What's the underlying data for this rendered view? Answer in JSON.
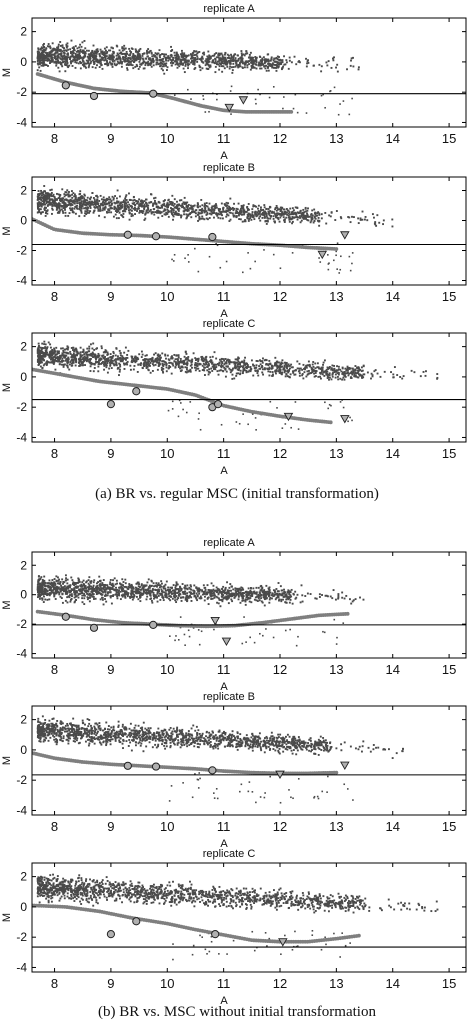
{
  "chart_data": [
    {
      "type": "scatter",
      "group": "a",
      "title": "replicate A",
      "xlabel": "A",
      "ylabel": "M",
      "xlim": [
        7.6,
        15.3
      ],
      "ylim": [
        -4.3,
        2.9
      ],
      "xticks": [
        8,
        9,
        10,
        11,
        12,
        13,
        14,
        15
      ],
      "yticks": [
        2,
        0,
        -2,
        -4
      ],
      "hline": -2.1,
      "cloud": {
        "x_range": [
          7.7,
          13.4
        ],
        "m_start": 0.45,
        "m_end": -0.2
      },
      "curve": {
        "x": [
          7.7,
          8.2,
          8.7,
          9.2,
          9.7,
          10.1,
          10.6,
          11.0,
          11.4,
          11.8,
          12.2
        ],
        "y": [
          -0.8,
          -1.35,
          -1.75,
          -1.95,
          -2.05,
          -2.4,
          -2.9,
          -3.2,
          -3.3,
          -3.3,
          -3.3
        ]
      },
      "circles": {
        "x": [
          8.2,
          8.7,
          9.75
        ],
        "y": [
          -1.55,
          -2.25,
          -2.1
        ]
      },
      "triangles": {
        "x": [
          11.1,
          11.35
        ],
        "y": [
          -3.0,
          -2.5
        ]
      }
    },
    {
      "type": "scatter",
      "group": "a",
      "title": "replicate B",
      "xlabel": "A",
      "ylabel": "M",
      "xlim": [
        7.6,
        15.3
      ],
      "ylim": [
        -4.3,
        2.9
      ],
      "xticks": [
        8,
        9,
        10,
        11,
        12,
        13,
        14,
        15
      ],
      "yticks": [
        2,
        0,
        -2,
        -4
      ],
      "hline": -1.6,
      "cloud": {
        "x_range": [
          7.7,
          14.0
        ],
        "m_start": 1.3,
        "m_end": 0.0
      },
      "curve": {
        "x": [
          7.6,
          8.0,
          8.5,
          9.0,
          9.5,
          10.0,
          10.5,
          11.0,
          11.5,
          12.0,
          12.5,
          13.0
        ],
        "y": [
          0.1,
          -0.6,
          -0.85,
          -0.95,
          -1.0,
          -1.1,
          -1.25,
          -1.4,
          -1.55,
          -1.65,
          -1.8,
          -1.9
        ]
      },
      "circles": {
        "x": [
          9.3,
          9.8,
          10.8
        ],
        "y": [
          -0.95,
          -1.05,
          -1.1
        ]
      },
      "triangles": {
        "x": [
          12.75,
          13.15
        ],
        "y": [
          -2.25,
          -0.95
        ]
      }
    },
    {
      "type": "scatter",
      "group": "a",
      "title": "replicate C",
      "xlabel": "A",
      "ylabel": "M",
      "xlim": [
        7.6,
        15.3
      ],
      "ylim": [
        -4.3,
        2.9
      ],
      "xticks": [
        8,
        9,
        10,
        11,
        12,
        13,
        14,
        15
      ],
      "yticks": [
        2,
        0,
        -2,
        -4
      ],
      "hline": -1.5,
      "cloud": {
        "x_range": [
          7.7,
          14.8
        ],
        "m_start": 1.4,
        "m_end": 0.0
      },
      "curve": {
        "x": [
          7.6,
          8.2,
          8.8,
          9.4,
          10.0,
          10.5,
          11.0,
          11.5,
          12.0,
          12.5,
          12.9
        ],
        "y": [
          0.5,
          0.1,
          -0.3,
          -0.55,
          -0.8,
          -1.2,
          -1.9,
          -2.3,
          -2.6,
          -2.85,
          -3.0
        ]
      },
      "circles": {
        "x": [
          9.0,
          9.45,
          10.8,
          10.9
        ],
        "y": [
          -1.8,
          -0.95,
          -2.0,
          -1.8
        ]
      },
      "triangles": {
        "x": [
          12.15,
          13.15
        ],
        "y": [
          -2.6,
          -2.75
        ]
      }
    },
    {
      "type": "scatter",
      "group": "b",
      "title": "replicate A",
      "xlabel": "A",
      "ylabel": "M",
      "xlim": [
        7.6,
        15.3
      ],
      "ylim": [
        -4.3,
        2.9
      ],
      "xticks": [
        8,
        9,
        10,
        11,
        12,
        13,
        14,
        15
      ],
      "yticks": [
        2,
        0,
        -2,
        -4
      ],
      "hline": -2.05,
      "cloud": {
        "x_range": [
          7.7,
          13.5
        ],
        "m_start": 0.45,
        "m_end": -0.2
      },
      "curve": {
        "x": [
          7.7,
          8.2,
          8.7,
          9.2,
          9.7,
          10.2,
          10.7,
          11.2,
          11.7,
          12.2,
          12.7,
          13.2
        ],
        "y": [
          -1.15,
          -1.4,
          -1.7,
          -1.9,
          -2.0,
          -2.1,
          -2.15,
          -2.1,
          -1.9,
          -1.65,
          -1.4,
          -1.3
        ]
      },
      "circles": {
        "x": [
          8.2,
          8.7,
          9.75
        ],
        "y": [
          -1.5,
          -2.25,
          -2.05
        ]
      },
      "triangles": {
        "x": [
          10.85,
          11.05
        ],
        "y": [
          -1.75,
          -3.15
        ]
      }
    },
    {
      "type": "scatter",
      "group": "b",
      "title": "replicate B",
      "xlabel": "A",
      "ylabel": "M",
      "xlim": [
        7.6,
        15.3
      ],
      "ylim": [
        -4.3,
        2.9
      ],
      "xticks": [
        8,
        9,
        10,
        11,
        12,
        13,
        14,
        15
      ],
      "yticks": [
        2,
        0,
        -2,
        -4
      ],
      "hline": -1.65,
      "cloud": {
        "x_range": [
          7.7,
          14.2
        ],
        "m_start": 1.3,
        "m_end": 0.0
      },
      "curve": {
        "x": [
          7.6,
          8.0,
          8.5,
          9.0,
          9.5,
          10.0,
          10.5,
          11.0,
          11.5,
          12.0,
          12.5,
          13.0
        ],
        "y": [
          -0.2,
          -0.55,
          -0.8,
          -0.95,
          -1.05,
          -1.15,
          -1.25,
          -1.4,
          -1.5,
          -1.55,
          -1.55,
          -1.5
        ]
      },
      "circles": {
        "x": [
          9.3,
          9.8,
          10.8
        ],
        "y": [
          -1.05,
          -1.1,
          -1.35
        ]
      },
      "triangles": {
        "x": [
          12.0,
          13.15
        ],
        "y": [
          -1.6,
          -1.0
        ]
      }
    },
    {
      "type": "scatter",
      "group": "b",
      "title": "replicate C",
      "xlabel": "A",
      "ylabel": "M",
      "xlim": [
        7.6,
        15.3
      ],
      "ylim": [
        -4.3,
        2.9
      ],
      "xticks": [
        8,
        9,
        10,
        11,
        12,
        13,
        14,
        15
      ],
      "yticks": [
        2,
        0,
        -2,
        -4
      ],
      "hline": -2.65,
      "cloud": {
        "x_range": [
          7.7,
          14.8
        ],
        "m_start": 1.3,
        "m_end": -0.1
      },
      "curve": {
        "x": [
          7.6,
          8.2,
          8.8,
          9.4,
          10.0,
          10.5,
          11.0,
          11.5,
          12.0,
          12.5,
          13.0,
          13.4
        ],
        "y": [
          0.1,
          0.0,
          -0.3,
          -0.75,
          -1.1,
          -1.5,
          -1.85,
          -2.2,
          -2.3,
          -2.3,
          -2.1,
          -1.9
        ]
      },
      "circles": {
        "x": [
          9.0,
          9.45,
          10.85
        ],
        "y": [
          -1.8,
          -0.95,
          -1.8
        ]
      },
      "triangles": {
        "x": [
          12.05
        ],
        "y": [
          -2.3
        ]
      }
    }
  ],
  "captions": {
    "a": "(a)  BR vs. regular MSC (initial transformation)",
    "b": "(b)  BR vs. MSC without initial transformation"
  },
  "colors": {
    "points": "#4a4a4a",
    "curve": "#7f7f7f",
    "marker_fill": "#b0b0b0",
    "axis": "#000000"
  }
}
